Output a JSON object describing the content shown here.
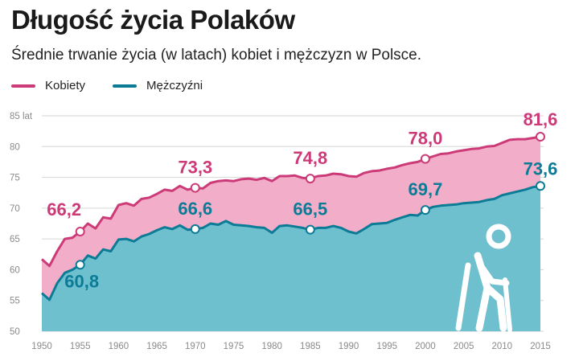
{
  "header": {
    "title": "Długość życia Polaków",
    "subtitle": "Średnie trwanie życia (w latach) kobiet i mężczyzn w Polsce."
  },
  "colors": {
    "women": "#cc3a78",
    "women_fill": "#f2aec8",
    "men": "#0b7b96",
    "men_fill": "#6fc0cf",
    "grid": "#d6d6d6"
  },
  "icon": "elderly-person-with-cane-icon",
  "chart_data": {
    "type": "area",
    "title": "Długość życia Polaków",
    "subtitle": "Średnie trwanie życia (w latach) kobiet i mężczyzn w Polsce.",
    "xlabel": "",
    "ylabel": "",
    "y_unit": "lat",
    "xlim": [
      1950,
      2015
    ],
    "ylim": [
      50,
      85
    ],
    "y_ticks": [
      50,
      55,
      60,
      65,
      70,
      75,
      80,
      85
    ],
    "y_tick_labels": [
      "50",
      "55",
      "60",
      "65",
      "70",
      "75",
      "80",
      "85 lat"
    ],
    "x_ticks": [
      1950,
      1955,
      1960,
      1965,
      1970,
      1975,
      1980,
      1985,
      1990,
      1995,
      2000,
      2005,
      2010,
      2015
    ],
    "x_tick_labels": [
      "1950",
      "1955",
      "1960",
      "1965",
      "1970",
      "1975",
      "1980",
      "1985",
      "1990",
      "1995",
      "2000",
      "2005",
      "2010",
      "2015"
    ],
    "grid": true,
    "legend_position": "top-left",
    "x": [
      1950,
      1951,
      1952,
      1953,
      1954,
      1955,
      1956,
      1957,
      1958,
      1959,
      1960,
      1961,
      1962,
      1963,
      1964,
      1965,
      1966,
      1967,
      1968,
      1969,
      1970,
      1971,
      1972,
      1973,
      1974,
      1975,
      1976,
      1977,
      1978,
      1979,
      1980,
      1981,
      1982,
      1983,
      1984,
      1985,
      1986,
      1987,
      1988,
      1989,
      1990,
      1991,
      1992,
      1993,
      1994,
      1995,
      1996,
      1997,
      1998,
      1999,
      2000,
      2001,
      2002,
      2003,
      2004,
      2005,
      2006,
      2007,
      2008,
      2009,
      2010,
      2011,
      2012,
      2013,
      2014,
      2015
    ],
    "series": [
      {
        "name": "Kobiety",
        "values": [
          61.7,
          60.6,
          63.0,
          65.0,
          65.2,
          66.2,
          67.5,
          66.7,
          68.5,
          68.3,
          70.5,
          70.8,
          70.4,
          71.5,
          71.7,
          72.3,
          73.0,
          72.8,
          73.6,
          73.0,
          73.3,
          73.2,
          74.1,
          74.4,
          74.5,
          74.4,
          74.7,
          74.8,
          74.6,
          74.9,
          74.4,
          75.2,
          75.2,
          75.3,
          74.9,
          74.8,
          75.2,
          75.3,
          75.6,
          75.5,
          75.2,
          75.1,
          75.7,
          76.0,
          76.1,
          76.4,
          76.6,
          77.0,
          77.3,
          77.5,
          78.0,
          78.4,
          78.8,
          78.9,
          79.2,
          79.4,
          79.6,
          79.7,
          80.0,
          80.1,
          80.6,
          81.1,
          81.2,
          81.2,
          81.4,
          81.6
        ]
      },
      {
        "name": "Mężczyźni",
        "values": [
          56.2,
          55.1,
          57.8,
          59.5,
          60.0,
          60.8,
          62.3,
          61.8,
          63.3,
          63.0,
          64.9,
          65.0,
          64.6,
          65.4,
          65.8,
          66.4,
          66.9,
          66.6,
          67.2,
          66.5,
          66.6,
          66.8,
          67.5,
          67.3,
          67.9,
          67.3,
          67.2,
          67.1,
          66.9,
          66.8,
          66.0,
          67.1,
          67.2,
          67.0,
          66.8,
          66.5,
          66.8,
          66.8,
          67.1,
          66.8,
          66.2,
          65.9,
          66.6,
          67.4,
          67.5,
          67.6,
          68.1,
          68.5,
          68.9,
          68.8,
          69.7,
          70.2,
          70.4,
          70.5,
          70.6,
          70.8,
          70.9,
          71.0,
          71.3,
          71.5,
          72.1,
          72.4,
          72.7,
          73.0,
          73.4,
          73.6
        ]
      }
    ],
    "annotations": [
      {
        "series": "Kobiety",
        "x": 1955,
        "label": "66,2"
      },
      {
        "series": "Kobiety",
        "x": 1970,
        "label": "73,3"
      },
      {
        "series": "Kobiety",
        "x": 1985,
        "label": "74,8"
      },
      {
        "series": "Kobiety",
        "x": 2000,
        "label": "78,0"
      },
      {
        "series": "Kobiety",
        "x": 2015,
        "label": "81,6"
      },
      {
        "series": "Mężczyźni",
        "x": 1955,
        "label": "60,8"
      },
      {
        "series": "Mężczyźni",
        "x": 1970,
        "label": "66,6"
      },
      {
        "series": "Mężczyźni",
        "x": 1985,
        "label": "66,5"
      },
      {
        "series": "Mężczyźni",
        "x": 2000,
        "label": "69,7"
      },
      {
        "series": "Mężczyźni",
        "x": 2015,
        "label": "73,6"
      }
    ]
  }
}
